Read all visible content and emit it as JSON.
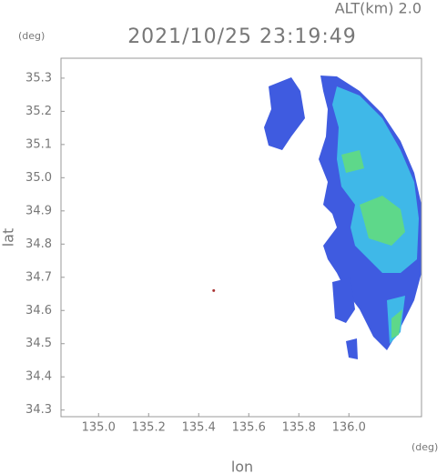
{
  "chart_data": {
    "type": "map",
    "title": "2021/10/25 23:19:49",
    "altitude_label": "ALT(km) 2.0",
    "y_unit": "(deg)",
    "x_unit": "(deg)",
    "x_label": "lon",
    "y_label": "lat",
    "xlim": [
      134.85,
      136.29
    ],
    "ylim": [
      34.28,
      35.36
    ],
    "xticks": [
      {
        "value": 135.0,
        "label": "135.0"
      },
      135.2,
      135.4,
      135.6,
      135.8,
      {
        "value": 136.0,
        "label": "136.0"
      }
    ],
    "yticks": [
      34.3,
      34.4,
      34.5,
      34.6,
      34.7,
      34.8,
      34.9,
      {
        "value": 35.0,
        "label": "35.0"
      },
      35.1,
      35.2,
      35.3
    ],
    "site": [
      135.46,
      34.66
    ]
  }
}
